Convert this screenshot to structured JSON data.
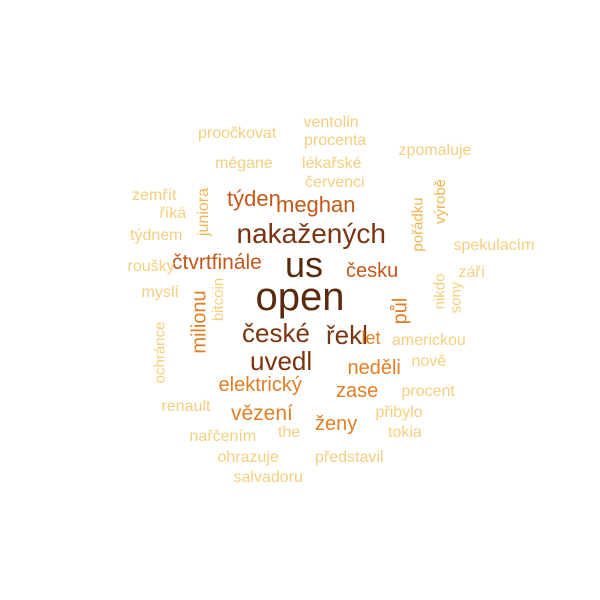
{
  "palette": {
    "darkest": "#5a2a0c",
    "dark": "#7a3510",
    "mid": "#c4571a",
    "orange": "#e07f25",
    "light": "#f0b552",
    "lightest": "#f5cf7e"
  },
  "words": [
    {
      "text": "open",
      "color": "darkest",
      "vertical": false
    },
    {
      "text": "us",
      "color": "darkest",
      "vertical": false
    },
    {
      "text": "nakažených",
      "color": "dark",
      "vertical": false
    },
    {
      "text": "české",
      "color": "dark",
      "vertical": false
    },
    {
      "text": "řekl",
      "color": "dark",
      "vertical": false
    },
    {
      "text": "uvedl",
      "color": "dark",
      "vertical": false
    },
    {
      "text": "týden",
      "color": "mid",
      "vertical": false
    },
    {
      "text": "meghan",
      "color": "mid",
      "vertical": false
    },
    {
      "text": "čtvrtfinále",
      "color": "mid",
      "vertical": false
    },
    {
      "text": "česku",
      "color": "mid",
      "vertical": false
    },
    {
      "text": "milionu",
      "color": "orange",
      "vertical": true
    },
    {
      "text": "půl",
      "color": "orange",
      "vertical": true
    },
    {
      "text": "let",
      "color": "orange",
      "vertical": false
    },
    {
      "text": "neděli",
      "color": "orange",
      "vertical": false
    },
    {
      "text": "elektrický",
      "color": "orange",
      "vertical": false
    },
    {
      "text": "zase",
      "color": "orange",
      "vertical": false
    },
    {
      "text": "vězení",
      "color": "orange",
      "vertical": false
    },
    {
      "text": "ženy",
      "color": "orange",
      "vertical": false
    },
    {
      "text": "ventolin",
      "color": "lightest",
      "vertical": false
    },
    {
      "text": "proočkovat",
      "color": "lightest",
      "vertical": false
    },
    {
      "text": "procenta",
      "color": "lightest",
      "vertical": false
    },
    {
      "text": "zpomaluje",
      "color": "lightest",
      "vertical": false
    },
    {
      "text": "mégane",
      "color": "lightest",
      "vertical": false
    },
    {
      "text": "lékařské",
      "color": "lightest",
      "vertical": false
    },
    {
      "text": "červenci",
      "color": "lightest",
      "vertical": false
    },
    {
      "text": "zemřít",
      "color": "lightest",
      "vertical": false
    },
    {
      "text": "říká",
      "color": "lightest",
      "vertical": false
    },
    {
      "text": "týdnem",
      "color": "lightest",
      "vertical": false
    },
    {
      "text": "juniora",
      "color": "light",
      "vertical": true
    },
    {
      "text": "výrobě",
      "color": "light",
      "vertical": true
    },
    {
      "text": "pořádku",
      "color": "light",
      "vertical": true
    },
    {
      "text": "spekulacím",
      "color": "lightest",
      "vertical": false
    },
    {
      "text": "roušky",
      "color": "lightest",
      "vertical": false
    },
    {
      "text": "září",
      "color": "lightest",
      "vertical": false
    },
    {
      "text": "myslí",
      "color": "lightest",
      "vertical": false
    },
    {
      "text": "bitcoin",
      "color": "lightest",
      "vertical": true
    },
    {
      "text": "nikdo",
      "color": "lightest",
      "vertical": true
    },
    {
      "text": "sony",
      "color": "lightest",
      "vertical": true
    },
    {
      "text": "ochránce",
      "color": "lightest",
      "vertical": true
    },
    {
      "text": "americkou",
      "color": "lightest",
      "vertical": false
    },
    {
      "text": "nově",
      "color": "lightest",
      "vertical": false
    },
    {
      "text": "procent",
      "color": "lightest",
      "vertical": false
    },
    {
      "text": "renault",
      "color": "lightest",
      "vertical": false
    },
    {
      "text": "přibylo",
      "color": "lightest",
      "vertical": false
    },
    {
      "text": "nařčením",
      "color": "lightest",
      "vertical": false
    },
    {
      "text": "the",
      "color": "lightest",
      "vertical": false
    },
    {
      "text": "tokia",
      "color": "lightest",
      "vertical": false
    },
    {
      "text": "ohrazuje",
      "color": "lightest",
      "vertical": false
    },
    {
      "text": "představil",
      "color": "lightest",
      "vertical": false
    },
    {
      "text": "salvadoru",
      "color": "lightest",
      "vertical": false
    }
  ]
}
